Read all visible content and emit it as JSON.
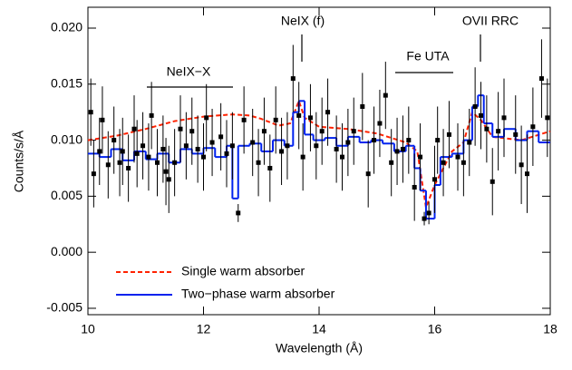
{
  "chart_data": {
    "type": "line",
    "x_label": "Wavelength (Å)",
    "y_label": "Counts/s/Å",
    "xlim": [
      10,
      18
    ],
    "ylim": [
      -0.00557,
      0.02186
    ],
    "xticks": [
      10,
      12,
      14,
      16,
      18
    ],
    "yticks": [
      -0.005,
      {
        "value": 0,
        "label": "0.000"
      },
      0.005,
      {
        "value": 0.01,
        "label": "0.010"
      },
      0.015,
      {
        "value": 0.02,
        "label": "0.020"
      }
    ],
    "legend": "lower left",
    "annotations": [
      "NeIX−X",
      "NeIX (f)",
      "Fe UTA",
      "OVII RRC"
    ],
    "points": {
      "color": "#000000",
      "x": [
        10.05,
        10.1,
        10.2,
        10.25,
        10.35,
        10.45,
        10.55,
        10.6,
        10.7,
        10.8,
        10.85,
        10.95,
        11.05,
        11.1,
        11.2,
        11.3,
        11.35,
        11.4,
        11.5,
        11.6,
        11.7,
        11.8,
        11.9,
        12.0,
        12.05,
        12.15,
        12.3,
        12.4,
        12.5,
        12.6,
        12.7,
        12.85,
        12.95,
        13.05,
        13.15,
        13.25,
        13.35,
        13.45,
        13.55,
        13.65,
        13.72,
        13.85,
        13.95,
        14.05,
        14.15,
        14.3,
        14.4,
        14.5,
        14.6,
        14.75,
        14.85,
        14.95,
        15.05,
        15.15,
        15.25,
        15.35,
        15.45,
        15.55,
        15.65,
        15.75,
        15.82,
        15.9,
        16.0,
        16.05,
        16.15,
        16.25,
        16.4,
        16.5,
        16.6,
        16.7,
        16.8,
        16.9,
        17.0,
        17.1,
        17.2,
        17.4,
        17.5,
        17.6,
        17.7,
        17.85,
        17.95
      ],
      "values": [
        0.0125,
        0.007,
        0.009,
        0.0118,
        0.0078,
        0.01,
        0.008,
        0.009,
        0.0075,
        0.011,
        0.0088,
        0.0095,
        0.0085,
        0.0122,
        0.008,
        0.0092,
        0.0072,
        0.0065,
        0.008,
        0.011,
        0.0095,
        0.0108,
        0.0092,
        0.0085,
        0.012,
        0.0098,
        0.0103,
        0.0088,
        0.0095,
        0.0035,
        0.0118,
        0.0098,
        0.008,
        0.0108,
        0.0075,
        0.0118,
        0.009,
        0.0095,
        0.0155,
        0.0122,
        0.0085,
        0.012,
        0.0095,
        0.0108,
        0.0125,
        0.0092,
        0.0085,
        0.0098,
        0.0108,
        0.013,
        0.007,
        0.01,
        0.0115,
        0.014,
        0.008,
        0.009,
        0.0092,
        0.01,
        0.0058,
        0.0085,
        0.003,
        0.0035,
        0.0065,
        0.01,
        0.008,
        0.0105,
        0.0085,
        0.008,
        0.0098,
        0.013,
        0.0122,
        0.011,
        0.0063,
        0.0108,
        0.012,
        0.0105,
        0.0078,
        0.007,
        0.0112,
        0.0155,
        0.012
      ],
      "errors": [
        0.003,
        0.003,
        0.003,
        0.003,
        0.003,
        0.003,
        0.003,
        0.003,
        0.003,
        0.003,
        0.003,
        0.003,
        0.003,
        0.003,
        0.003,
        0.003,
        0.003,
        0.003,
        0.003,
        0.003,
        0.003,
        0.003,
        0.003,
        0.003,
        0.003,
        0.003,
        0.003,
        0.003,
        0.003,
        0.0008,
        0.003,
        0.003,
        0.003,
        0.003,
        0.003,
        0.003,
        0.003,
        0.003,
        0.003,
        0.003,
        0.003,
        0.003,
        0.003,
        0.003,
        0.003,
        0.003,
        0.003,
        0.003,
        0.003,
        0.003,
        0.003,
        0.003,
        0.003,
        0.003,
        0.003,
        0.003,
        0.003,
        0.003,
        0.003,
        0.003,
        0.0006,
        0.001,
        0.003,
        0.003,
        0.003,
        0.003,
        0.003,
        0.003,
        0.003,
        0.0035,
        0.003,
        0.003,
        0.003,
        0.0035,
        0.0035,
        0.0035,
        0.0035,
        0.0035,
        0.0035,
        0.0035,
        0.0035
      ]
    },
    "series": [
      {
        "name": "Single warm absorber",
        "color": "#ff2200",
        "linestyle": "dashed",
        "drawstyle": "default",
        "x": [
          10,
          10.5,
          11,
          11.5,
          12,
          12.5,
          12.8,
          13,
          13.3,
          13.5,
          13.65,
          13.75,
          14,
          14.5,
          15,
          15.5,
          15.7,
          15.85,
          16,
          16.3,
          16.5,
          16.65,
          16.8,
          17,
          17.5,
          18
        ],
        "values": [
          0.01,
          0.0104,
          0.011,
          0.0117,
          0.0121,
          0.0123,
          0.0122,
          0.0119,
          0.0113,
          0.0115,
          0.0135,
          0.012,
          0.0112,
          0.011,
          0.0106,
          0.0098,
          0.009,
          0.004,
          0.006,
          0.009,
          0.0098,
          0.0125,
          0.0118,
          0.0103,
          0.01,
          0.0108
        ]
      },
      {
        "name": "Two−phase warm absorber",
        "color": "#0022ee",
        "linestyle": "solid",
        "drawstyle": "steps-post",
        "x": [
          10,
          10.2,
          10.4,
          10.6,
          10.8,
          11,
          11.2,
          11.4,
          11.6,
          11.8,
          12,
          12.2,
          12.4,
          12.5,
          12.6,
          12.8,
          13,
          13.2,
          13.4,
          13.55,
          13.65,
          13.75,
          13.9,
          14.1,
          14.3,
          14.5,
          14.7,
          14.9,
          15.1,
          15.3,
          15.5,
          15.65,
          15.75,
          15.85,
          16,
          16.1,
          16.3,
          16.5,
          16.65,
          16.75,
          16.85,
          17,
          17.2,
          17.4,
          17.6,
          17.8
        ],
        "values": [
          0.0088,
          0.0085,
          0.0092,
          0.0082,
          0.009,
          0.0083,
          0.0088,
          0.008,
          0.0092,
          0.0088,
          0.0093,
          0.0085,
          0.0095,
          0.0048,
          0.0095,
          0.0097,
          0.009,
          0.01,
          0.0095,
          0.0125,
          0.0135,
          0.0105,
          0.01,
          0.0102,
          0.0095,
          0.0103,
          0.0098,
          0.01,
          0.0097,
          0.009,
          0.0095,
          0.0075,
          0.0055,
          0.003,
          0.006,
          0.0085,
          0.0088,
          0.01,
          0.013,
          0.014,
          0.0115,
          0.0103,
          0.011,
          0.01,
          0.0108,
          0.0098
        ]
      }
    ]
  }
}
